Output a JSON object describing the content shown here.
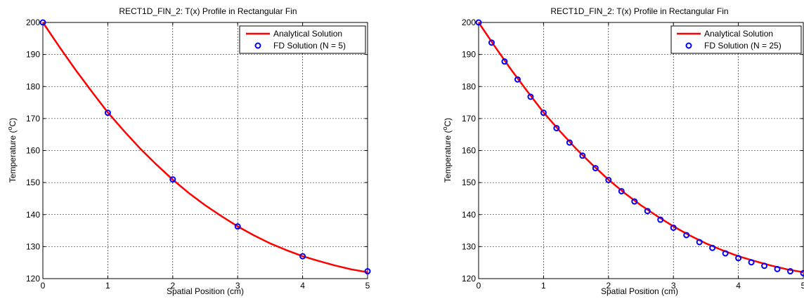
{
  "chart_data": [
    {
      "type": "line",
      "title": "RECT1D_FIN_2: T(x) Profile in Rectangular Fin",
      "xlabel": "Spatial Position (cm)",
      "ylabel_main": "Temperature (",
      "ylabel_sup": "o",
      "ylabel_tail": "C)",
      "xlim": [
        0,
        5
      ],
      "ylim": [
        120,
        200
      ],
      "xticks": [
        "0",
        "1",
        "2",
        "3",
        "4",
        "5"
      ],
      "yticks": [
        "120",
        "130",
        "140",
        "150",
        "160",
        "170",
        "180",
        "190",
        "200"
      ],
      "grid": true,
      "legend_position": "top-right",
      "series": [
        {
          "name": "Analytical Solution",
          "style": "line",
          "color": "#ff0000",
          "x": [
            0,
            0.25,
            0.5,
            0.75,
            1.0,
            1.25,
            1.5,
            1.75,
            2.0,
            2.25,
            2.5,
            2.75,
            3.0,
            3.25,
            3.5,
            3.75,
            4.0,
            4.25,
            4.5,
            4.75,
            5.0
          ],
          "y": [
            200,
            192.5,
            185.3,
            178.5,
            171.9,
            166.1,
            160.6,
            155.6,
            150.9,
            146.7,
            142.9,
            139.5,
            136.3,
            133.5,
            131.0,
            128.9,
            127.0,
            125.5,
            124.1,
            122.9,
            122.0
          ]
        },
        {
          "name": "FD Solution (N = 5)",
          "style": "marker",
          "color": "#0000ff",
          "x": [
            0,
            1,
            2,
            3,
            4,
            5
          ],
          "y": [
            200,
            171.8,
            151.0,
            136.3,
            127.0,
            122.3
          ]
        }
      ]
    },
    {
      "type": "line",
      "title": "RECT1D_FIN_2: T(x) Profile in Rectangular Fin",
      "xlabel": "Spatial Position (cm)",
      "ylabel_main": "Temperature (",
      "ylabel_sup": "o",
      "ylabel_tail": "C)",
      "xlim": [
        0,
        5
      ],
      "ylim": [
        120,
        200
      ],
      "xticks": [
        "0",
        "1",
        "2",
        "3",
        "4",
        "5"
      ],
      "yticks": [
        "120",
        "130",
        "140",
        "150",
        "160",
        "170",
        "180",
        "190",
        "200"
      ],
      "grid": true,
      "legend_position": "top-right",
      "series": [
        {
          "name": "Analytical Solution",
          "style": "line",
          "color": "#ff0000",
          "x": [
            0,
            0.25,
            0.5,
            0.75,
            1.0,
            1.25,
            1.5,
            1.75,
            2.0,
            2.25,
            2.5,
            2.75,
            3.0,
            3.25,
            3.5,
            3.75,
            4.0,
            4.25,
            4.5,
            4.75,
            5.0
          ],
          "y": [
            200,
            192.5,
            185.3,
            178.5,
            171.9,
            166.1,
            160.6,
            155.6,
            150.9,
            146.7,
            142.9,
            139.5,
            136.3,
            133.5,
            131.0,
            128.9,
            127.0,
            125.5,
            124.1,
            122.9,
            122.0
          ]
        },
        {
          "name": "FD Solution (N = 25)",
          "style": "marker",
          "color": "#0000ff",
          "x": [
            0,
            0.2,
            0.4,
            0.6,
            0.8,
            1.0,
            1.2,
            1.4,
            1.6,
            1.8,
            2.0,
            2.2,
            2.4,
            2.6,
            2.8,
            3.0,
            3.2,
            3.4,
            3.6,
            3.8,
            4.0,
            4.2,
            4.4,
            4.6,
            4.8,
            5.0
          ],
          "y": [
            200,
            193.7,
            187.8,
            182.2,
            176.8,
            171.8,
            167.0,
            162.5,
            158.4,
            154.5,
            150.8,
            147.3,
            144.1,
            141.1,
            138.4,
            135.9,
            133.6,
            131.4,
            129.6,
            127.9,
            126.4,
            125.1,
            124.0,
            123.0,
            122.3,
            121.7
          ]
        }
      ]
    }
  ]
}
